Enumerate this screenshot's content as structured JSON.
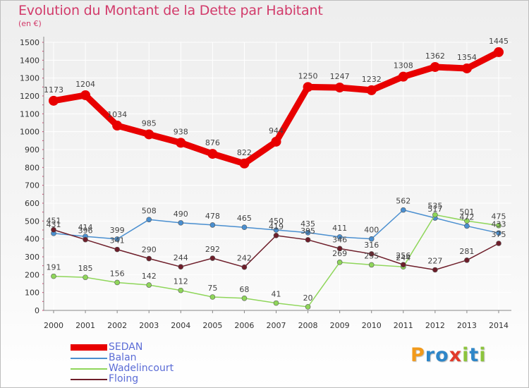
{
  "title": "Evolution du Montant de la Dette par Habitant",
  "unit": "(en €)",
  "logo": {
    "text": "Proxiti",
    "letters": [
      "P",
      "r",
      "o",
      "x",
      "i",
      "t",
      "i"
    ],
    "colors": [
      "#f29a1b",
      "#2e86c8",
      "#2e86c8",
      "#e23a2a",
      "#8cc43c",
      "#2e86c8",
      "#8cc43c"
    ]
  },
  "chart_data": {
    "type": "line",
    "title": "Evolution du Montant de la Dette par Habitant",
    "subtitle": "(en €)",
    "x": [
      2000,
      2001,
      2002,
      2003,
      2004,
      2005,
      2006,
      2007,
      2008,
      2009,
      2010,
      2011,
      2012,
      2013,
      2014
    ],
    "ylim": [
      0,
      1500
    ],
    "yticks": [
      0,
      100,
      200,
      300,
      400,
      500,
      600,
      700,
      800,
      900,
      1000,
      1100,
      1200,
      1300,
      1400,
      1500
    ],
    "grid": true,
    "legend_position": "bottom-left",
    "series": [
      {
        "name": "SEDAN",
        "color": "#e80000",
        "values": [
          1173,
          1204,
          1034,
          985,
          938,
          876,
          822,
          944,
          1250,
          1247,
          1232,
          1308,
          1362,
          1354,
          1445
        ]
      },
      {
        "name": "Balan",
        "color": "#4a8fd0",
        "values": [
          431,
          414,
          399,
          508,
          490,
          478,
          465,
          450,
          435,
          411,
          400,
          562,
          517,
          472,
          433
        ]
      },
      {
        "name": "Wadelincourt",
        "color": "#8fd65a",
        "values": [
          191,
          185,
          156,
          142,
          112,
          75,
          68,
          41,
          20,
          269,
          255,
          244,
          535,
          501,
          475
        ]
      },
      {
        "name": "Floing",
        "color": "#6e1e2a",
        "values": [
          451,
          396,
          341,
          290,
          244,
          292,
          242,
          419,
          395,
          346,
          316,
          256,
          227,
          281,
          375
        ]
      }
    ]
  }
}
